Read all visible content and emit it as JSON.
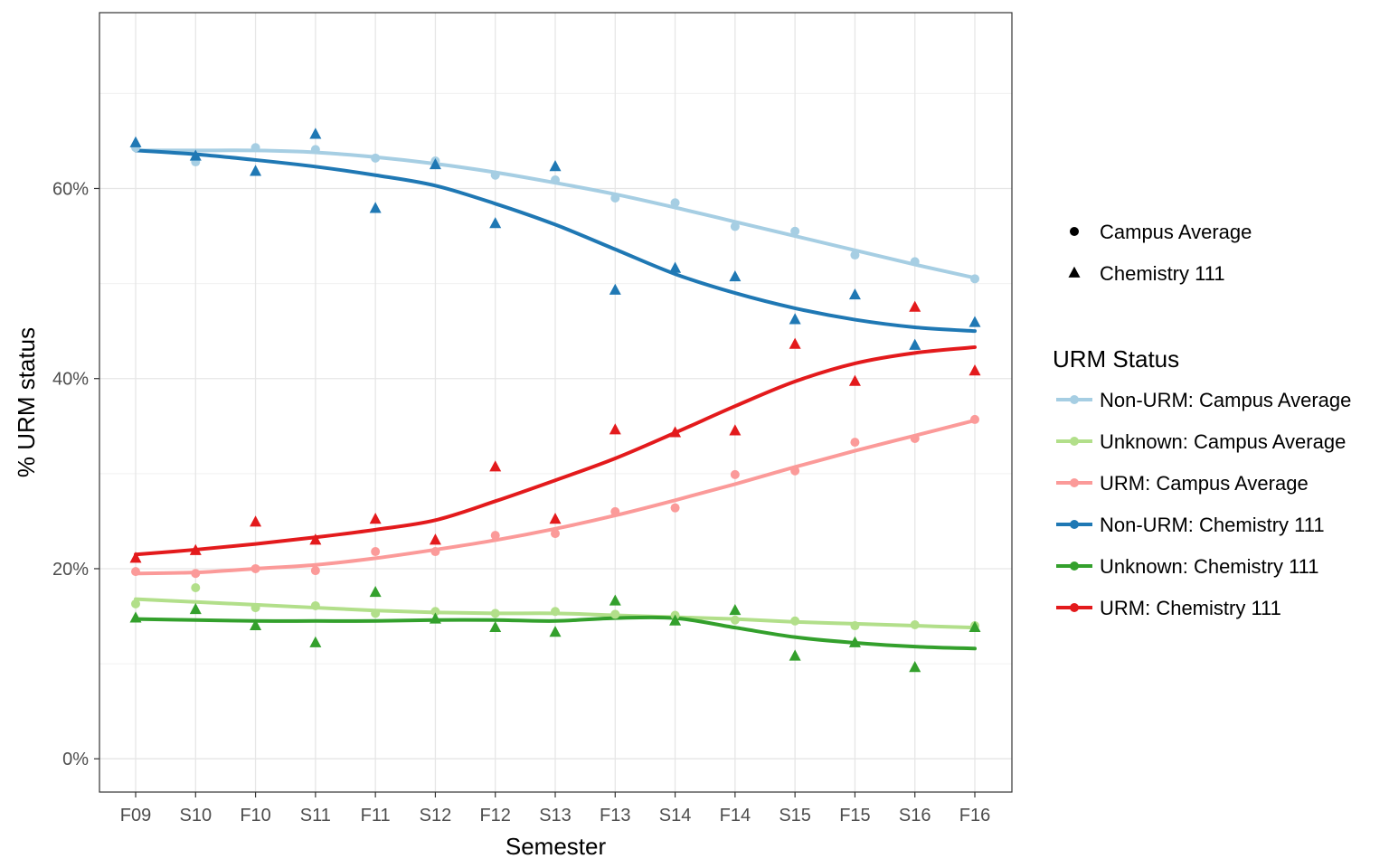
{
  "chart_data": {
    "type": "line",
    "title": "",
    "xlabel": "Semester",
    "ylabel": "% URM status",
    "categories": [
      "F09",
      "S10",
      "F10",
      "S11",
      "F11",
      "S12",
      "F12",
      "S13",
      "F13",
      "S14",
      "F14",
      "S15",
      "F15",
      "S16",
      "F16"
    ],
    "ylim": [
      -3.5,
      78.5
    ],
    "yticks": [
      0,
      20,
      40,
      60
    ],
    "ytick_labels": [
      "0%",
      "20%",
      "40%",
      "60%"
    ],
    "grid": true,
    "shape_legend": {
      "items": [
        {
          "label": "Campus Average",
          "shape": "circle"
        },
        {
          "label": "Chemistry 111",
          "shape": "triangle"
        }
      ]
    },
    "color_legend": {
      "title": "URM Status",
      "placement": "right"
    },
    "series": [
      {
        "name": "Non-URM: Campus Average",
        "color": "#a6cee3",
        "shape": "circle",
        "values": [
          64.3,
          62.8,
          64.3,
          64.1,
          63.2,
          62.9,
          61.4,
          60.9,
          59.0,
          58.5,
          56.0,
          55.5,
          53.0,
          52.3,
          50.5
        ],
        "fit": [
          64.0,
          64.0,
          64.0,
          63.8,
          63.3,
          62.6,
          61.7,
          60.6,
          59.4,
          58.0,
          56.5,
          55.0,
          53.5,
          52.0,
          50.6
        ]
      },
      {
        "name": "Unknown: Campus Average",
        "color": "#b2df8a",
        "shape": "circle",
        "values": [
          16.3,
          18.0,
          15.9,
          16.1,
          15.3,
          15.5,
          15.3,
          15.5,
          15.2,
          15.1,
          14.6,
          14.5,
          14.0,
          14.1,
          14.0
        ],
        "fit": [
          16.8,
          16.5,
          16.2,
          15.9,
          15.6,
          15.4,
          15.3,
          15.3,
          15.1,
          14.9,
          14.7,
          14.4,
          14.2,
          14.0,
          13.8
        ]
      },
      {
        "name": "URM: Campus Average",
        "color": "#fb9a99",
        "shape": "circle",
        "values": [
          19.7,
          19.5,
          20.0,
          19.8,
          21.8,
          21.8,
          23.5,
          23.7,
          26.0,
          26.4,
          29.9,
          30.3,
          33.3,
          33.7,
          35.7
        ],
        "fit": [
          19.5,
          19.6,
          20.0,
          20.4,
          21.1,
          22.0,
          23.0,
          24.2,
          25.6,
          27.2,
          28.9,
          30.7,
          32.4,
          34.0,
          35.6
        ]
      },
      {
        "name": "Non-URM: Chemistry 111",
        "color": "#1f78b4",
        "shape": "triangle",
        "values": [
          64.8,
          63.4,
          61.8,
          65.7,
          57.9,
          62.5,
          56.3,
          62.3,
          49.3,
          51.6,
          50.7,
          46.2,
          48.8,
          43.5,
          45.9
        ],
        "fit": [
          64.0,
          63.6,
          63.0,
          62.3,
          61.4,
          60.3,
          58.4,
          56.2,
          53.6,
          51.0,
          49.0,
          47.4,
          46.2,
          45.4,
          45.0
        ]
      },
      {
        "name": "Unknown: Chemistry 111",
        "color": "#33a02c",
        "shape": "triangle",
        "values": [
          14.8,
          15.7,
          14.0,
          12.2,
          17.5,
          14.7,
          13.8,
          13.3,
          16.6,
          14.5,
          15.6,
          10.8,
          12.2,
          9.6,
          13.8
        ],
        "fit": [
          14.7,
          14.6,
          14.5,
          14.5,
          14.5,
          14.6,
          14.6,
          14.5,
          14.8,
          14.8,
          13.8,
          12.8,
          12.2,
          11.8,
          11.6
        ]
      },
      {
        "name": "URM: Chemistry 111",
        "color": "#e31a1c",
        "shape": "triangle",
        "values": [
          21.1,
          21.9,
          24.9,
          23.0,
          25.2,
          23.0,
          30.7,
          25.2,
          34.6,
          34.3,
          34.5,
          43.6,
          39.7,
          47.5,
          40.8
        ],
        "fit": [
          21.5,
          22.0,
          22.6,
          23.3,
          24.1,
          25.1,
          27.1,
          29.3,
          31.6,
          34.3,
          37.1,
          39.7,
          41.6,
          42.7,
          43.3
        ]
      }
    ]
  }
}
